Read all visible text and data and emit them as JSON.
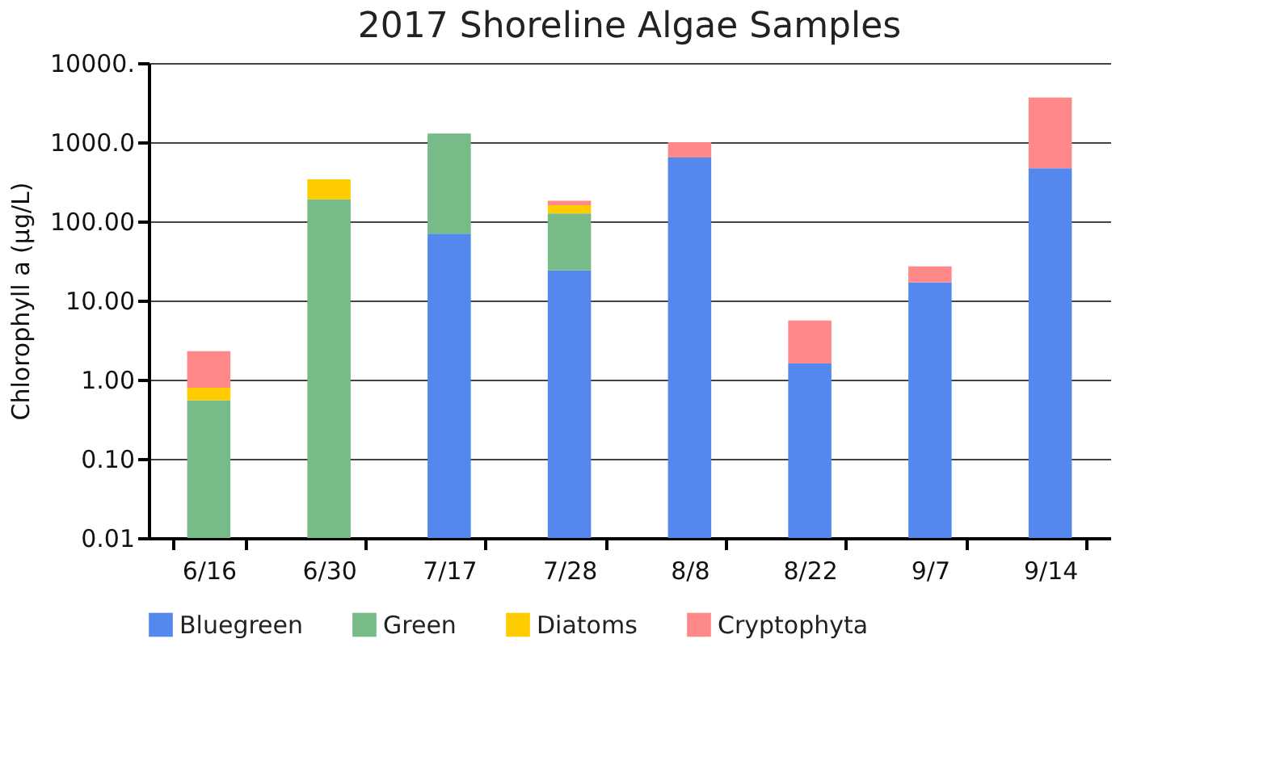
{
  "chart_data": {
    "type": "bar",
    "title": "2017 Shoreline Algae Samples",
    "ylabel": "Chlorophyll a (µg/L)",
    "categories": [
      "6/16",
      "6/30",
      "7/17",
      "7/28",
      "8/8",
      "8/22",
      "9/7",
      "9/14"
    ],
    "stacked": true,
    "log": true,
    "grid": "y",
    "legend": "bottom",
    "ylim": [
      0.01,
      10000
    ],
    "yticks": [
      {
        "value": 0.01,
        "label": "0.01"
      },
      {
        "value": 0.1,
        "label": "0.10"
      },
      {
        "value": 1,
        "label": "1.00"
      },
      {
        "value": 10,
        "label": "10.00"
      },
      {
        "value": 100,
        "label": "100.00"
      },
      {
        "value": 1000,
        "label": "1000.0"
      },
      {
        "value": 10000,
        "label": "10000."
      }
    ],
    "series": [
      {
        "name": "Bluegreen",
        "color": "#5588ee",
        "values": [
          null,
          null,
          70,
          24,
          640,
          1.6,
          17,
          470
        ]
      },
      {
        "name": "Green",
        "color": "#77bb88",
        "values": [
          0.55,
          190,
          1220,
          102,
          null,
          null,
          null,
          null
        ]
      },
      {
        "name": "Diatoms",
        "color": "#ffcc00",
        "values": [
          0.24,
          150,
          null,
          34,
          null,
          null,
          null,
          null
        ]
      },
      {
        "name": "Cryptophyta",
        "color": "#ff8888",
        "values": [
          1.5,
          null,
          null,
          22,
          360,
          4.0,
          10,
          3200
        ]
      }
    ]
  }
}
